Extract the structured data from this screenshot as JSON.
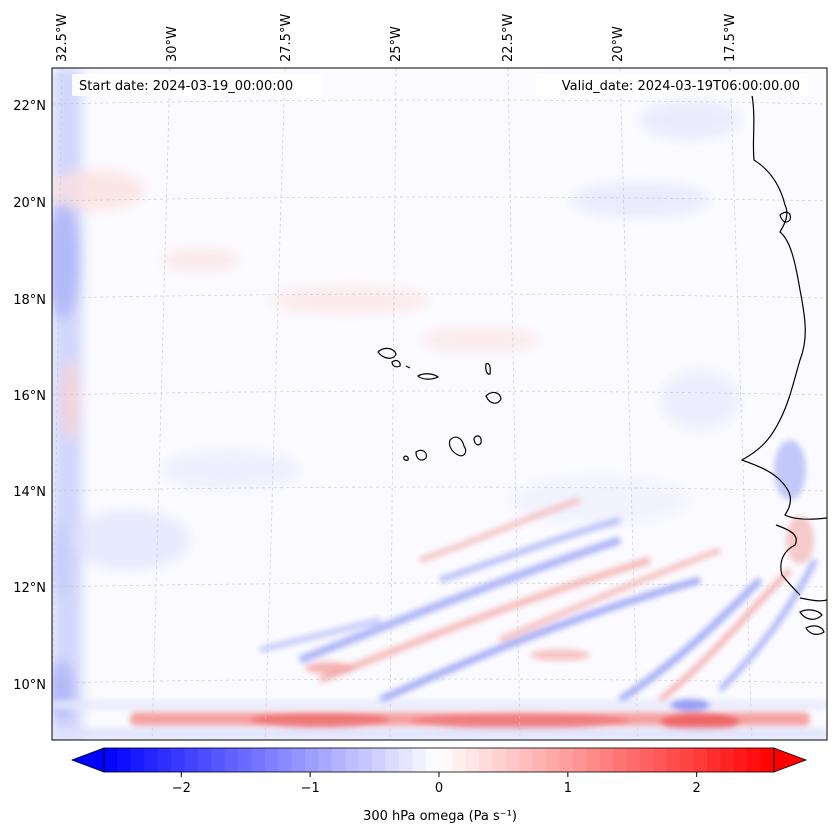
{
  "map": {
    "start_date": "Start date: 2024-03-19_00:00:00",
    "valid_date": "Valid_date: 2024-03-19T06:00:00.00",
    "lon_labels": [
      "32.5°W",
      "30°W",
      "27.5°W",
      "25°W",
      "22.5°W",
      "20°W",
      "17.5°W"
    ],
    "lat_labels": [
      "22°N",
      "20°N",
      "18°N",
      "16°N",
      "14°N",
      "12°N",
      "10°N"
    ],
    "extent": {
      "lon_min": -32.8,
      "lon_max": -15.8,
      "lat_min": 8.9,
      "lat_max": 22.7
    },
    "colors": {
      "negative": "#0000ff",
      "zero": "#ffffff",
      "positive": "#ff0000",
      "coastline": "#000000",
      "grid": "#c8c8c8"
    }
  },
  "colorbar": {
    "label": "300 hPa omega (Pa s⁻¹)",
    "ticks": [
      "−2",
      "−1",
      "0",
      "1",
      "2"
    ],
    "tick_values": [
      -2,
      -1,
      0,
      1,
      2
    ],
    "vmin": -2.6,
    "vmax": 2.6,
    "extend": "both"
  }
}
